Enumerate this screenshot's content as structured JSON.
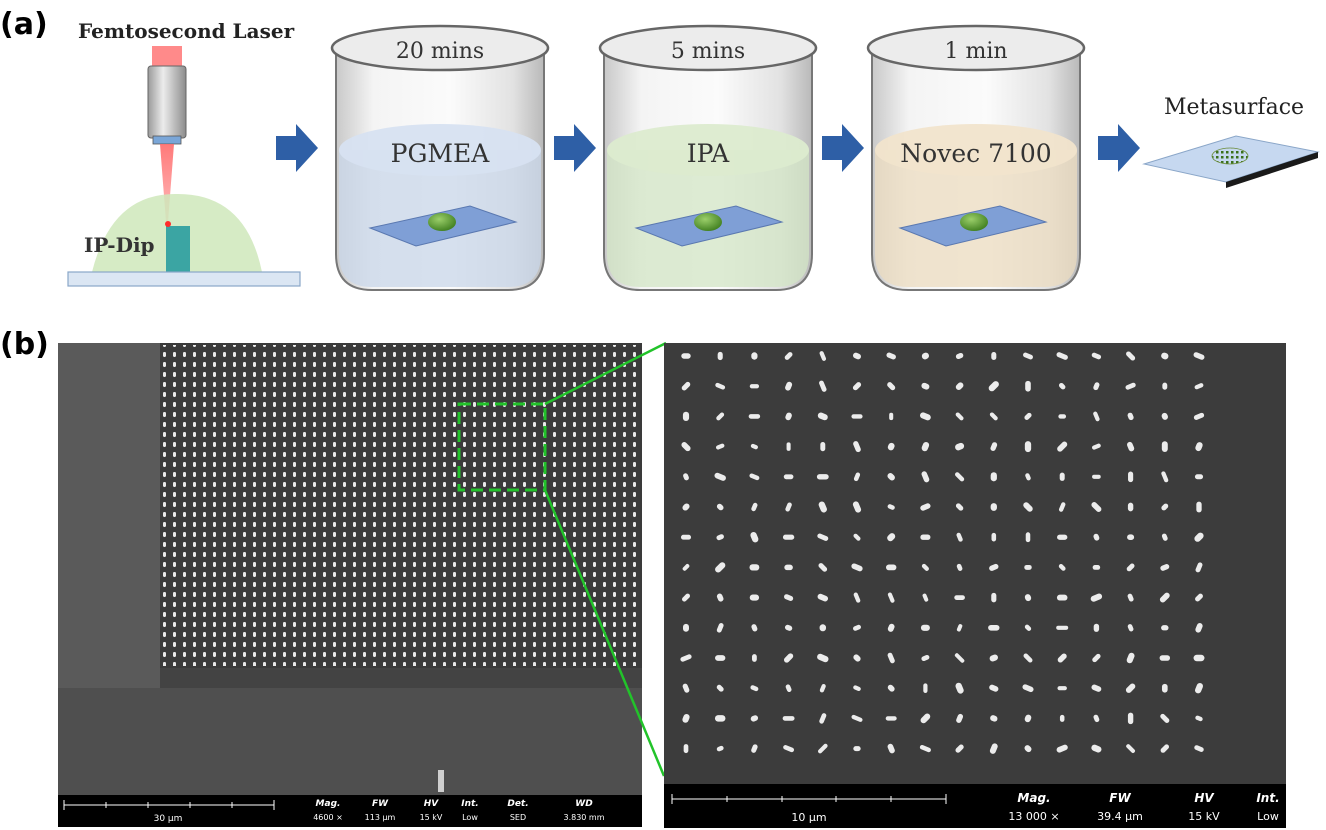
{
  "panel_a": {
    "label": "(a)",
    "laser_label": "Femtosecond Laser",
    "resin_label": "IP-Dip",
    "steps": [
      {
        "time": "20 mins",
        "solvent": "PGMEA",
        "liquid_color": "#c9d7ea"
      },
      {
        "time": "5 mins",
        "solvent": "IPA",
        "liquid_color": "#d3e6c6"
      },
      {
        "time": "1 min",
        "solvent": "Novec 7100",
        "liquid_color": "#ecdcc0"
      }
    ],
    "result_label": "Metasurface",
    "arrow_color": "#2e5fa6"
  },
  "panel_b": {
    "label": "(b)",
    "highlight_color": "#22c32a",
    "left_sem": {
      "scale_label": "30 µm",
      "info": [
        {
          "key": "Mag.",
          "value": "4600 ×"
        },
        {
          "key": "FW",
          "value": "113 µm"
        },
        {
          "key": "HV",
          "value": "15 kV"
        },
        {
          "key": "Int.",
          "value": "Low"
        },
        {
          "key": "Det.",
          "value": "SED"
        },
        {
          "key": "WD",
          "value": "3.830 mm"
        }
      ]
    },
    "right_sem": {
      "scale_label": "10 µm",
      "info": [
        {
          "key": "Mag.",
          "value": "13 000 ×"
        },
        {
          "key": "FW",
          "value": "39.4 µm"
        },
        {
          "key": "HV",
          "value": "15 kV"
        },
        {
          "key": "Int.",
          "value": "Low"
        }
      ]
    }
  }
}
